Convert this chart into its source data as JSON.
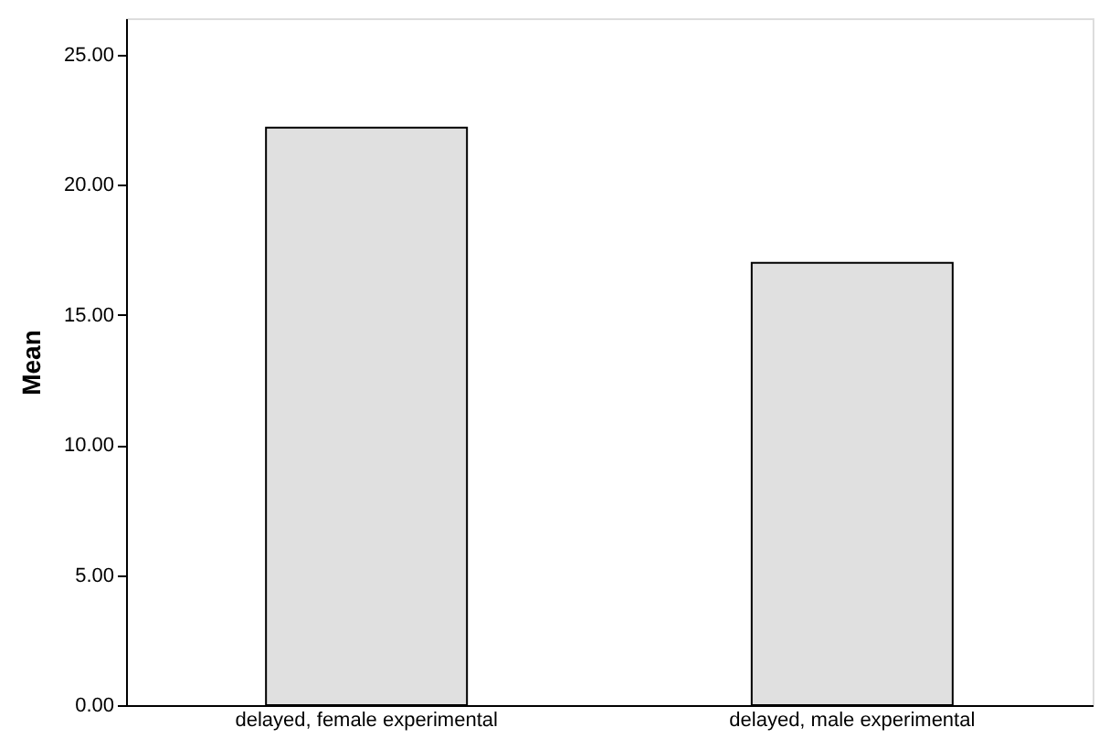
{
  "chart_data": {
    "type": "bar",
    "ylabel": "Mean",
    "categories": [
      "delayed, female experimental",
      "delayed, male experimental"
    ],
    "values": [
      22.2,
      17.0
    ],
    "color": "#e0e0e0",
    "ylim": [
      0,
      26.4
    ],
    "yticks": [
      {
        "value": 0,
        "label": "0.00"
      },
      {
        "value": 5,
        "label": "5.00"
      },
      {
        "value": 10,
        "label": "10.00"
      },
      {
        "value": 15,
        "label": "15.00"
      },
      {
        "value": 20,
        "label": "20.00"
      },
      {
        "value": 25,
        "label": "25.00"
      }
    ],
    "grid": false
  }
}
